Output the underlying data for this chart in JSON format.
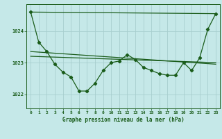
{
  "title": "Graphe pression niveau de la mer (hPa)",
  "background_color": "#c5e8e8",
  "grid_color": "#a8cece",
  "line_color": "#1a5c1a",
  "xlim": [
    -0.5,
    23.5
  ],
  "ylim": [
    1021.55,
    1024.85
  ],
  "yticks": [
    1022,
    1023,
    1024
  ],
  "xticks": [
    0,
    1,
    2,
    3,
    4,
    5,
    6,
    7,
    8,
    9,
    10,
    11,
    12,
    13,
    14,
    15,
    16,
    17,
    18,
    19,
    20,
    21,
    22,
    23
  ],
  "series1_x": [
    0,
    1,
    2,
    3,
    4,
    5,
    6,
    7,
    8,
    9,
    10,
    11,
    12,
    13,
    14,
    15,
    16,
    17,
    18,
    19,
    20,
    21,
    22,
    23
  ],
  "series1_y": [
    1024.6,
    1023.65,
    1023.35,
    1022.95,
    1022.7,
    1022.55,
    1022.1,
    1022.1,
    1022.35,
    1022.75,
    1023.0,
    1023.05,
    1023.25,
    1023.1,
    1022.85,
    1022.75,
    1022.65,
    1022.6,
    1022.6,
    1023.0,
    1022.75,
    1023.15,
    1024.05,
    1024.55
  ],
  "line2_x": [
    0,
    23
  ],
  "line2_y": [
    1024.6,
    1024.55
  ],
  "line3_x": [
    0,
    23
  ],
  "line3_y": [
    1023.35,
    1022.95
  ],
  "line4_x": [
    0,
    23
  ],
  "line4_y": [
    1023.2,
    1023.0
  ]
}
